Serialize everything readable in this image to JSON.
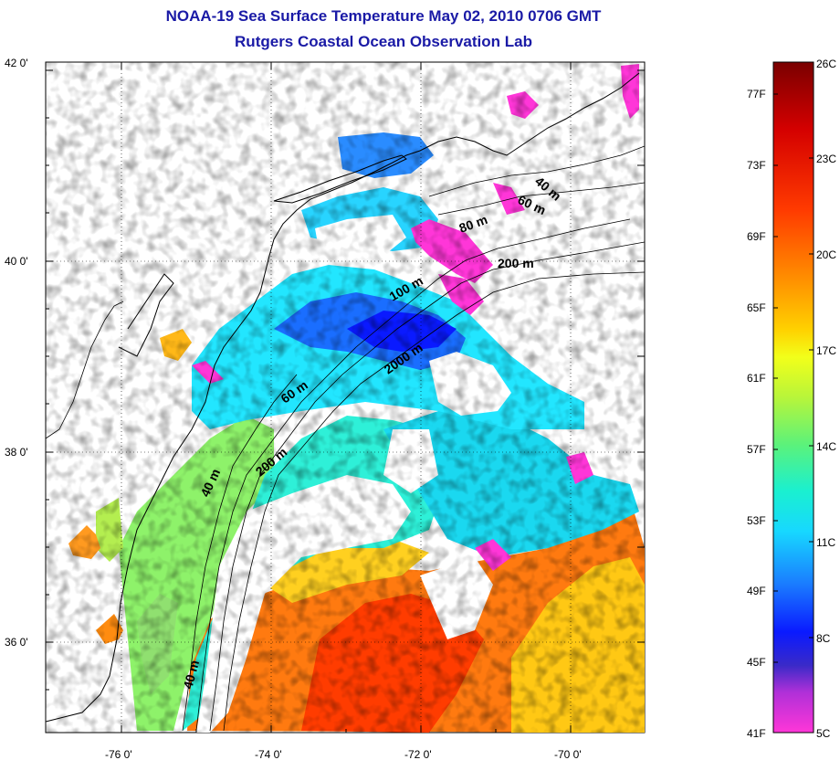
{
  "title": "NOAA-19 Sea Surface Temperature May 02, 2010 0706 GMT",
  "subtitle": "Rutgers Coastal Ocean Observation Lab",
  "lat_ticks": [
    "42 0'",
    "40 0'",
    "38 0'",
    "36 0'"
  ],
  "lon_ticks": [
    "-76 0'",
    "-74 0'",
    "-72 0'",
    "-70 0'"
  ],
  "isobaths": {
    "ne_40": "40 m",
    "ne_60": "60 m",
    "ne_80": "80 m",
    "ne_200": "200 m",
    "mid_100": "100 m",
    "mid_2000": "2000 m",
    "mid_60": "60 m",
    "s_200": "200 m",
    "s_40": "40 m",
    "sw_40": "40 m"
  },
  "colorbar": {
    "celsius": [
      "26C",
      "23C",
      "20C",
      "17C",
      "14C",
      "11C",
      "8C",
      "5C"
    ],
    "fahrenheit": [
      "77F",
      "73F",
      "69F",
      "65F",
      "61F",
      "57F",
      "53F",
      "49F",
      "45F",
      "41F"
    ],
    "colors": [
      "#7a0000",
      "#d40000",
      "#ff2a00",
      "#ff7a00",
      "#ffbf00",
      "#f2ff1a",
      "#9cf24a",
      "#3df29a",
      "#17f0e0",
      "#1aa0ff",
      "#1a3aff",
      "#0000c8",
      "#8a2ad4",
      "#ff36d8"
    ]
  },
  "colors": {
    "title": "#1a1aa6",
    "cloud_mask": "#ffffff",
    "cold_edge": "#ff36d8"
  }
}
